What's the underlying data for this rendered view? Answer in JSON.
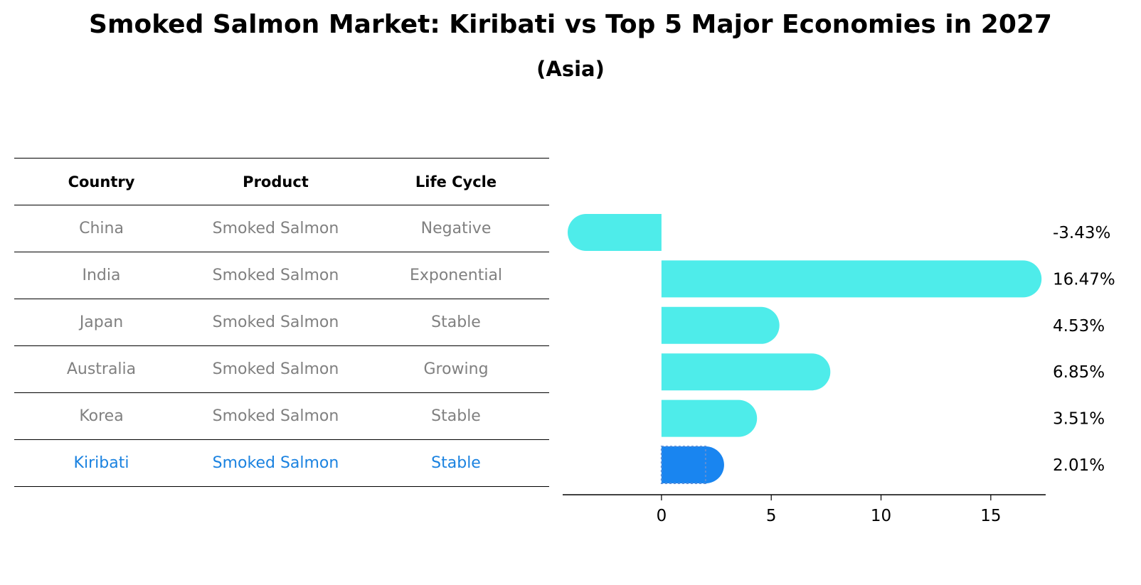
{
  "title": "Smoked Salmon Market: Kiribati vs Top 5 Major Economies in 2027",
  "subtitle": "(Asia)",
  "table": {
    "headers": [
      "Country",
      "Product",
      "Life Cycle"
    ],
    "rows": [
      {
        "country": "China",
        "product": "Smoked Salmon",
        "life_cycle": "Negative"
      },
      {
        "country": "India",
        "product": "Smoked Salmon",
        "life_cycle": "Exponential"
      },
      {
        "country": "Japan",
        "product": "Smoked Salmon",
        "life_cycle": "Stable"
      },
      {
        "country": "Australia",
        "product": "Smoked Salmon",
        "life_cycle": "Growing"
      },
      {
        "country": "Korea",
        "product": "Smoked Salmon",
        "life_cycle": "Stable"
      },
      {
        "country": "Kiribati",
        "product": "Smoked Salmon",
        "life_cycle": "Stable"
      }
    ]
  },
  "chart_data": {
    "type": "bar",
    "orientation": "horizontal",
    "categories": [
      "China",
      "India",
      "Japan",
      "Australia",
      "Korea",
      "Kiribati"
    ],
    "values": [
      -3.43,
      16.47,
      4.53,
      6.85,
      3.51,
      2.01
    ],
    "value_labels": [
      "-3.43%",
      "16.47%",
      "4.53%",
      "6.85%",
      "3.51%",
      "2.01%"
    ],
    "highlight_category": "Kiribati",
    "xlim": [
      -4.5,
      17.5
    ],
    "xticks": [
      0,
      5,
      10,
      15
    ],
    "xtick_labels": [
      "0",
      "5",
      "10",
      "15"
    ],
    "grid": false,
    "colors": {
      "default": "#4eecea",
      "highlight": "#1985f0"
    }
  }
}
